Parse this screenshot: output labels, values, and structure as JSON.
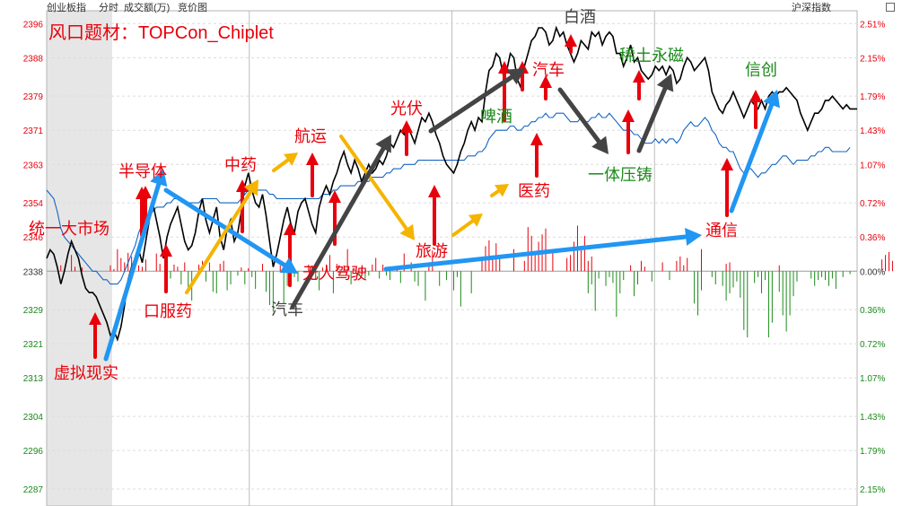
{
  "header": {
    "index_name": "创业板指",
    "mode_tab": "分时",
    "turnover_tab": "成交额(万)",
    "auction_tab": "竞价图",
    "right_label": "沪深指数"
  },
  "colors": {
    "up": "#e8000b",
    "down": "#1a8a1a",
    "price_line": "#000000",
    "avg_line": "#1565c0",
    "grid": "#dcdcdc"
  },
  "chart_data": {
    "type": "line",
    "title": "风口题材：TOPCon_Chiplet",
    "ylim": [
      2283,
      2399
    ],
    "baseline": 2338,
    "y_ticks": [
      2396,
      2388,
      2379,
      2371,
      2363,
      2354,
      2346,
      2338,
      2329,
      2321,
      2313,
      2304,
      2296,
      2287
    ],
    "pct_ticks": [
      "2.51%",
      "2.15%",
      "1.79%",
      "1.43%",
      "1.07%",
      "0.72%",
      "0.36%",
      "0.00%",
      "0.36%",
      "0.72%",
      "1.07%",
      "1.43%",
      "1.79%",
      "2.15%"
    ],
    "series": [
      {
        "kind": "price",
        "values": [
          2341,
          2343,
          2342,
          2339,
          2335,
          2338,
          2342,
          2345,
          2343,
          2341,
          2337,
          2334,
          2333,
          2333,
          2332,
          2330,
          2328,
          2326,
          2323,
          2324,
          2322,
          2325,
          2330,
          2336,
          2339,
          2341,
          2343,
          2340,
          2345,
          2350,
          2354,
          2350,
          2346,
          2341,
          2346,
          2349,
          2351,
          2353,
          2349,
          2345,
          2343,
          2344,
          2347,
          2352,
          2355,
          2350,
          2347,
          2350,
          2353,
          2346,
          2343,
          2348,
          2350,
          2345,
          2347,
          2352,
          2358,
          2361,
          2357,
          2354,
          2353,
          2356,
          2351,
          2345,
          2339,
          2342,
          2346,
          2350,
          2353,
          2349,
          2347,
          2352,
          2354,
          2355,
          2352,
          2349,
          2347,
          2353,
          2356,
          2358,
          2356,
          2359,
          2361,
          2364,
          2366,
          2363,
          2361,
          2364,
          2362,
          2359,
          2361,
          2363,
          2361,
          2362,
          2364,
          2363,
          2365,
          2368,
          2367,
          2369,
          2371,
          2370,
          2372,
          2370,
          2368,
          2371,
          2374,
          2373,
          2375,
          2373,
          2370,
          2368,
          2365,
          2363,
          2362,
          2361,
          2363,
          2366,
          2368,
          2371,
          2373,
          2371,
          2374,
          2373,
          2380,
          2385,
          2386,
          2389,
          2388,
          2384,
          2385,
          2389,
          2388,
          2383,
          2381,
          2386,
          2389,
          2392,
          2393,
          2395,
          2395,
          2394,
          2391,
          2392,
          2395,
          2393,
          2394,
          2391,
          2389,
          2387,
          2389,
          2392,
          2391,
          2390,
          2394,
          2393,
          2394,
          2391,
          2393,
          2394,
          2393,
          2389,
          2389,
          2386,
          2388,
          2391,
          2387,
          2388,
          2385,
          2384,
          2383,
          2384,
          2386,
          2385,
          2386,
          2384,
          2386,
          2385,
          2382,
          2383,
          2386,
          2388,
          2387,
          2385,
          2386,
          2387,
          2388,
          2385,
          2380,
          2378,
          2376,
          2375,
          2377,
          2378,
          2380,
          2378,
          2376,
          2374,
          2376,
          2378,
          2377,
          2376,
          2378,
          2376,
          2379,
          2380,
          2379,
          2380,
          2380,
          2381,
          2380,
          2379,
          2378,
          2375,
          2373,
          2371,
          2373,
          2375,
          2375,
          2376,
          2378,
          2378,
          2379,
          2378,
          2377,
          2376,
          2377,
          2376,
          2376,
          2376
        ]
      },
      {
        "kind": "average",
        "values": [
          2357,
          2356,
          2355,
          2352,
          2348,
          2346,
          2345,
          2344,
          2343,
          2342,
          2341,
          2340,
          2339,
          2338,
          2338,
          2337,
          2336,
          2336,
          2335,
          2335,
          2335,
          2336,
          2338,
          2340,
          2342,
          2344,
          2347,
          2349,
          2350,
          2351,
          2352,
          2353,
          2353,
          2353,
          2354,
          2354,
          2355,
          2355,
          2355,
          2354,
          2354,
          2354,
          2354,
          2354,
          2355,
          2355,
          2355,
          2355,
          2355,
          2354,
          2354,
          2354,
          2354,
          2354,
          2354,
          2355,
          2356,
          2357,
          2357,
          2357,
          2357,
          2357,
          2357,
          2356,
          2356,
          2355,
          2355,
          2355,
          2355,
          2355,
          2355,
          2355,
          2355,
          2355,
          2355,
          2355,
          2355,
          2355,
          2356,
          2356,
          2356,
          2357,
          2357,
          2358,
          2358,
          2358,
          2358,
          2358,
          2359,
          2359,
          2359,
          2359,
          2360,
          2360,
          2360,
          2360,
          2361,
          2361,
          2362,
          2362,
          2362,
          2363,
          2363,
          2363,
          2363,
          2364,
          2364,
          2364,
          2364,
          2364,
          2364,
          2364,
          2364,
          2364,
          2364,
          2364,
          2364,
          2364,
          2364,
          2365,
          2365,
          2365,
          2366,
          2366,
          2367,
          2369,
          2370,
          2371,
          2371,
          2371,
          2371,
          2372,
          2372,
          2371,
          2371,
          2372,
          2372,
          2373,
          2373,
          2374,
          2374,
          2375,
          2374,
          2374,
          2375,
          2375,
          2375,
          2374,
          2373,
          2373,
          2373,
          2374,
          2373,
          2373,
          2374,
          2374,
          2375,
          2374,
          2374,
          2375,
          2374,
          2373,
          2372,
          2371,
          2371,
          2371,
          2370,
          2370,
          2369,
          2368,
          2368,
          2368,
          2369,
          2368,
          2369,
          2368,
          2369,
          2369,
          2368,
          2369,
          2371,
          2372,
          2373,
          2372,
          2372,
          2373,
          2374,
          2373,
          2371,
          2370,
          2368,
          2367,
          2367,
          2366,
          2366,
          2364,
          2362,
          2361,
          2362,
          2362,
          2361,
          2360,
          2361,
          2361,
          2362,
          2363,
          2363,
          2364,
          2365,
          2365,
          2364,
          2363,
          2364,
          2364,
          2364,
          2364,
          2365,
          2365,
          2366,
          2366,
          2367,
          2367,
          2366,
          2366,
          2366,
          2366,
          2366,
          2367
        ]
      }
    ],
    "volume_up": [
      0,
      0,
      0,
      0,
      8,
      0,
      0,
      22,
      6,
      0,
      5,
      0,
      0,
      0,
      0,
      0,
      0,
      0,
      8,
      3,
      30,
      18,
      12,
      25,
      20,
      0,
      8,
      6,
      16,
      0,
      0,
      24,
      10,
      0,
      0,
      0,
      9,
      6,
      0,
      12,
      0,
      0,
      0,
      9,
      14,
      0,
      12,
      0,
      0,
      10,
      14,
      0,
      0,
      0,
      0,
      5,
      0,
      4,
      0,
      0,
      0,
      10,
      0,
      0,
      0,
      0,
      8,
      0,
      0,
      9,
      0,
      0,
      0,
      0,
      9,
      8,
      0,
      0,
      5,
      9,
      22,
      0,
      10,
      0,
      8,
      30,
      0,
      4,
      0,
      5,
      0,
      0,
      9,
      18,
      0,
      9,
      0,
      0,
      0,
      7,
      0,
      24,
      0,
      12,
      0,
      0,
      0,
      0,
      10,
      28,
      0,
      0,
      0,
      0,
      0,
      0,
      0,
      0,
      0,
      0,
      0,
      0,
      0,
      14,
      34,
      42,
      20,
      38,
      18,
      0,
      0,
      0,
      30,
      0,
      0,
      14,
      60,
      48,
      26,
      40,
      50,
      58,
      0,
      30,
      0,
      0,
      0,
      18,
      22,
      40,
      62,
      30,
      48,
      14,
      20,
      0,
      0,
      0,
      0,
      0,
      0,
      0,
      0,
      0,
      0,
      8,
      0,
      0,
      14,
      6,
      0,
      0,
      0,
      0,
      12,
      0,
      0,
      0,
      14,
      20,
      8,
      18,
      0,
      0,
      0,
      30,
      0,
      0,
      0,
      0,
      0,
      0,
      10,
      12,
      0,
      0,
      0,
      0,
      0,
      0,
      0,
      0,
      0,
      0,
      0,
      0,
      0,
      8,
      0,
      0,
      0,
      0,
      0,
      0,
      0,
      0,
      0,
      0,
      0,
      0,
      0,
      0,
      0,
      0,
      0,
      0,
      0,
      0,
      0,
      0,
      0,
      0,
      0,
      0,
      0,
      0,
      16,
      22,
      26,
      14
    ],
    "volume_down": [
      0,
      0,
      0,
      0,
      0,
      0,
      0,
      0,
      0,
      0,
      0,
      0,
      0,
      0,
      0,
      0,
      0,
      0,
      0,
      0,
      0,
      0,
      0,
      0,
      0,
      0,
      0,
      0,
      0,
      0,
      0,
      0,
      0,
      0,
      0,
      10,
      0,
      0,
      18,
      0,
      22,
      40,
      0,
      0,
      0,
      14,
      0,
      28,
      30,
      0,
      0,
      26,
      18,
      0,
      6,
      0,
      18,
      0,
      8,
      24,
      0,
      0,
      28,
      46,
      55,
      0,
      0,
      44,
      20,
      0,
      8,
      14,
      0,
      0,
      0,
      0,
      12,
      26,
      0,
      0,
      0,
      30,
      0,
      4,
      0,
      0,
      18,
      0,
      6,
      0,
      10,
      6,
      0,
      0,
      10,
      0,
      6,
      12,
      0,
      0,
      16,
      0,
      0,
      0,
      14,
      20,
      0,
      40,
      0,
      0,
      0,
      20,
      0,
      12,
      0,
      26,
      8,
      48,
      0,
      0,
      30,
      0,
      0,
      0,
      0,
      0,
      0,
      0,
      0,
      0,
      0,
      0,
      0,
      0,
      0,
      0,
      0,
      0,
      0,
      0,
      0,
      0,
      0,
      0,
      0,
      0,
      0,
      0,
      0,
      0,
      0,
      0,
      0,
      30,
      18,
      54,
      10,
      0,
      20,
      8,
      16,
      62,
      30,
      12,
      0,
      0,
      34,
      18,
      0,
      0,
      0,
      14,
      0,
      0,
      0,
      0,
      12,
      0,
      0,
      0,
      0,
      0,
      0,
      44,
      60,
      26,
      0,
      0,
      8,
      18,
      0,
      20,
      40,
      30,
      22,
      14,
      36,
      80,
      90,
      0,
      16,
      8,
      30,
      12,
      90,
      70,
      0,
      28,
      60,
      82,
      60,
      34,
      14,
      0,
      0,
      0,
      10,
      20,
      12,
      8,
      12,
      20,
      10,
      24,
      0,
      8,
      0,
      4,
      0,
      0,
      0,
      0,
      0,
      0,
      0,
      0,
      0
    ],
    "annotations": [
      {
        "text": "虚拟现实",
        "color": "#e8000b"
      },
      {
        "text": "统一大市场",
        "color": "#e8000b"
      },
      {
        "text": "半导体",
        "color": "#e8000b"
      },
      {
        "text": "口服药",
        "color": "#e8000b"
      },
      {
        "text": "中药",
        "color": "#e8000b"
      },
      {
        "text": "航运",
        "color": "#e8000b"
      },
      {
        "text": "无人驾驶",
        "color": "#e8000b"
      },
      {
        "text": "汽车",
        "color": "#444444"
      },
      {
        "text": "光伏",
        "color": "#e8000b"
      },
      {
        "text": "旅游",
        "color": "#e8000b"
      },
      {
        "text": "啤酒",
        "color": "#1a8a1a"
      },
      {
        "text": "医药",
        "color": "#e8000b"
      },
      {
        "text": "白酒",
        "color": "#444444"
      },
      {
        "text": "汽车",
        "color": "#e8000b"
      },
      {
        "text": "稀土永磁",
        "color": "#1a8a1a"
      },
      {
        "text": "一体压铸",
        "color": "#1a8a1a"
      },
      {
        "text": "信创",
        "color": "#1a8a1a"
      },
      {
        "text": "通信",
        "color": "#e8000b"
      }
    ]
  }
}
